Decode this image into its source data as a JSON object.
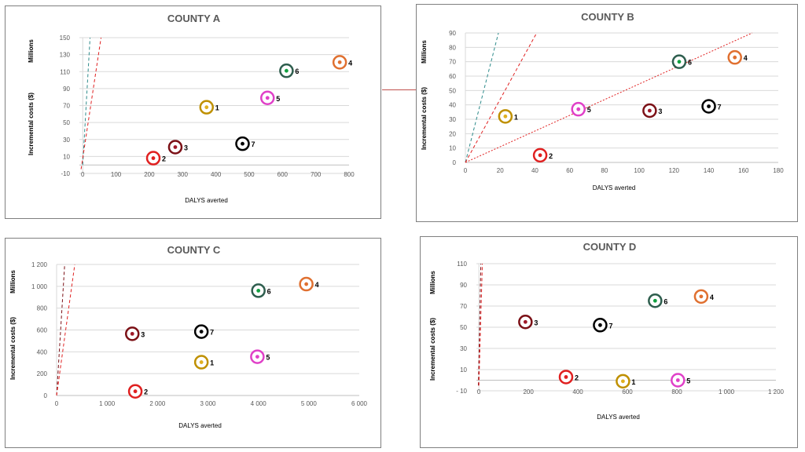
{
  "colors": {
    "1": "#bf9000",
    "2": "#e02020",
    "3": "#7b1016",
    "4": "#e07030",
    "5": "#e040c8",
    "6": "#2e5e4e",
    "7": "#000000"
  },
  "dot_colors": {
    "1": "#e0b020",
    "2": "#e02020",
    "3": "#a01828",
    "4": "#e07030",
    "5": "#e040c8",
    "6": "#10a040",
    "7": "#000000"
  },
  "chart_data": [
    {
      "type": "scatter",
      "title": "COUNTY A",
      "ylabel_top": "Millions",
      "ylabel": "Incremental costs ($)",
      "xlabel": "DALYS averted",
      "xlim": [
        -10,
        800
      ],
      "ylim": [
        -10,
        150
      ],
      "xticks": [
        0,
        100,
        200,
        300,
        400,
        500,
        600,
        700,
        800
      ],
      "xtick_labels": [
        "0",
        "100",
        "200",
        "300",
        "400",
        "500",
        "600",
        "700",
        "800"
      ],
      "yticks": [
        -10,
        10,
        30,
        50,
        70,
        90,
        110,
        130,
        150
      ],
      "ytick_labels": [
        "-10",
        "10",
        "30",
        "50",
        "70",
        "90",
        "110",
        "130",
        "150"
      ],
      "points": [
        {
          "label": "1",
          "x": 372,
          "y": 68
        },
        {
          "label": "2",
          "x": 212,
          "y": 8
        },
        {
          "label": "3",
          "x": 278,
          "y": 21
        },
        {
          "label": "4",
          "x": 772,
          "y": 121
        },
        {
          "label": "5",
          "x": 555,
          "y": 79
        },
        {
          "label": "6",
          "x": 612,
          "y": 111
        },
        {
          "label": "7",
          "x": 480,
          "y": 25
        }
      ],
      "lines": [
        {
          "color": "#2e8b8b",
          "style": "dashed",
          "from": [
            0,
            0
          ],
          "to": [
            22,
            150
          ]
        },
        {
          "color": "#e02020",
          "style": "dashed",
          "from": [
            -5,
            -5
          ],
          "to": [
            55,
            150
          ]
        }
      ]
    },
    {
      "type": "scatter",
      "title": "COUNTY B",
      "ylabel_top": "Millions",
      "ylabel": "Incremental costs ($)",
      "xlabel": "DALYS averted",
      "xlim": [
        0,
        180
      ],
      "ylim": [
        0,
        90
      ],
      "xticks": [
        0,
        20,
        40,
        60,
        80,
        100,
        120,
        140,
        160,
        180
      ],
      "xtick_labels": [
        "0",
        "20",
        "40",
        "60",
        "80",
        "100",
        "120",
        "140",
        "160",
        "180"
      ],
      "yticks": [
        0,
        10,
        20,
        30,
        40,
        50,
        60,
        70,
        80,
        90
      ],
      "ytick_labels": [
        "0",
        "10",
        "20",
        "30",
        "40",
        "50",
        "60",
        "70",
        "80",
        "90"
      ],
      "points": [
        {
          "label": "1",
          "x": 23,
          "y": 32
        },
        {
          "label": "2",
          "x": 43,
          "y": 5
        },
        {
          "label": "3",
          "x": 106,
          "y": 36
        },
        {
          "label": "4",
          "x": 155,
          "y": 73
        },
        {
          "label": "5",
          "x": 65,
          "y": 37
        },
        {
          "label": "6",
          "x": 123,
          "y": 70
        },
        {
          "label": "7",
          "x": 140,
          "y": 39
        }
      ],
      "lines": [
        {
          "color": "#2e8b8b",
          "style": "dashed",
          "from": [
            0,
            0
          ],
          "to": [
            19,
            90
          ]
        },
        {
          "color": "#e02020",
          "style": "dashed",
          "from": [
            0,
            0
          ],
          "to": [
            41,
            90
          ]
        },
        {
          "color": "#e02020",
          "style": "dotted",
          "from": [
            0,
            0
          ],
          "to": [
            165,
            90
          ]
        }
      ]
    },
    {
      "type": "scatter",
      "title": "COUNTY C",
      "ylabel_top": "Millions",
      "ylabel": "Incremental costs ($)",
      "xlabel": "DALYS averted",
      "xlim": [
        0,
        6000
      ],
      "ylim": [
        0,
        1200
      ],
      "xticks": [
        0,
        1000,
        2000,
        3000,
        4000,
        5000,
        6000
      ],
      "xtick_labels": [
        "0",
        "1 000",
        "2 000",
        "3 000",
        "4 000",
        "5 000",
        "6 000"
      ],
      "yticks": [
        0,
        200,
        400,
        600,
        800,
        1000,
        1200
      ],
      "ytick_labels": [
        "0",
        "200",
        "400",
        "600",
        "800",
        "1 000",
        "1 200"
      ],
      "points": [
        {
          "label": "1",
          "x": 2870,
          "y": 305
        },
        {
          "label": "2",
          "x": 1560,
          "y": 38
        },
        {
          "label": "3",
          "x": 1500,
          "y": 565
        },
        {
          "label": "4",
          "x": 4950,
          "y": 1020
        },
        {
          "label": "5",
          "x": 3980,
          "y": 355
        },
        {
          "label": "6",
          "x": 4000,
          "y": 960
        },
        {
          "label": "7",
          "x": 2870,
          "y": 585
        }
      ],
      "lines": [
        {
          "color": "#7b1016",
          "style": "dashed",
          "from": [
            0,
            0
          ],
          "to": [
            160,
            1200
          ]
        },
        {
          "color": "#e02020",
          "style": "dashed",
          "from": [
            0,
            0
          ],
          "to": [
            360,
            1200
          ]
        }
      ]
    },
    {
      "type": "scatter",
      "title": "COUNTY D",
      "ylabel_top": "Millions",
      "ylabel": "Incremental costs ($)",
      "xlabel": "DALYS averted",
      "xlim": [
        -10,
        1200
      ],
      "ylim": [
        -10,
        110
      ],
      "xticks": [
        0,
        200,
        400,
        600,
        800,
        1000,
        1200
      ],
      "xtick_labels": [
        "0",
        "200",
        "400",
        "600",
        "800",
        "1 000",
        "1 200"
      ],
      "yticks": [
        -10,
        10,
        30,
        50,
        70,
        90,
        110
      ],
      "ytick_labels": [
        "- 10",
        "10",
        "30",
        "50",
        "70",
        "90",
        "110"
      ],
      "points": [
        {
          "label": "1",
          "x": 582,
          "y": -1
        },
        {
          "label": "2",
          "x": 352,
          "y": 3
        },
        {
          "label": "3",
          "x": 188,
          "y": 55
        },
        {
          "label": "4",
          "x": 898,
          "y": 79
        },
        {
          "label": "5",
          "x": 804,
          "y": 0
        },
        {
          "label": "6",
          "x": 712,
          "y": 75
        },
        {
          "label": "7",
          "x": 490,
          "y": 52
        }
      ],
      "lines": [
        {
          "color": "#7b1016",
          "style": "dashed",
          "from": [
            -2,
            -5
          ],
          "to": [
            8,
            110
          ]
        },
        {
          "color": "#e02020",
          "style": "dashed",
          "from": [
            0,
            -5
          ],
          "to": [
            14,
            110
          ]
        }
      ]
    }
  ]
}
